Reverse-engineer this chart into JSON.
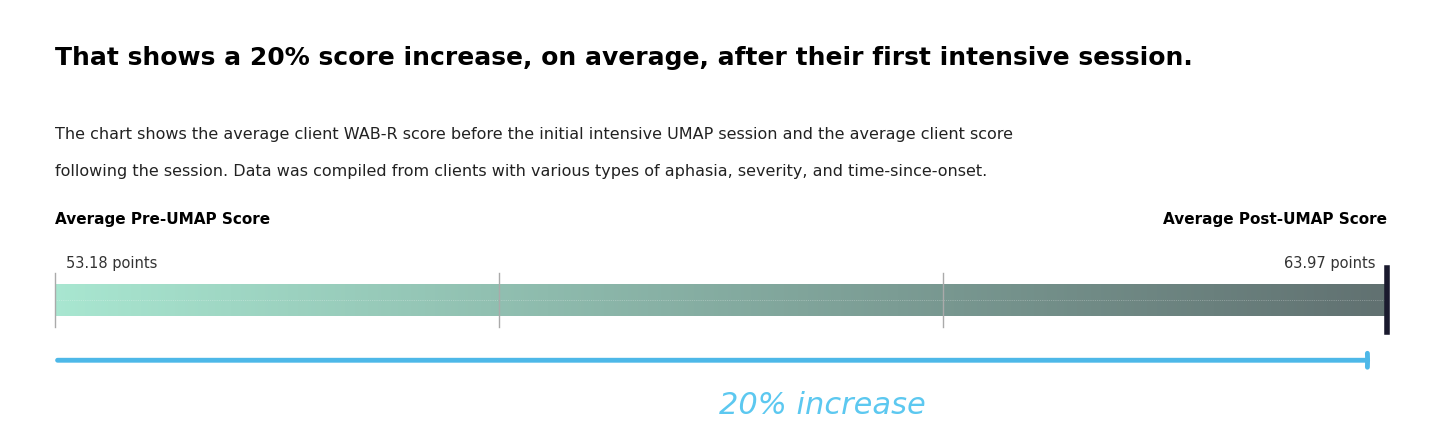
{
  "title": "That shows a 20% score increase, on average, after their first intensive session.",
  "subtitle_line1": "The chart shows the average client WAB-R score before the initial intensive UMAP session and the average client score",
  "subtitle_line2": "following the session. Data was compiled from clients with various types of aphasia, severity, and time-since-onset.",
  "left_label_bold": "Average Pre-UMAP Score",
  "left_label_value": "53.18 points",
  "right_label_bold": "Average Post-UMAP Score",
  "right_label_value": "63.97 points",
  "arrow_label": "20% increase",
  "bar_color_left": "#a8e6d0",
  "bar_color_right": "#607070",
  "tick_color": "#aaaaaa",
  "arrow_color": "#4db8e8",
  "arrow_label_color": "#5cc8f0",
  "background_color": "#ffffff",
  "title_fontsize": 18,
  "subtitle_fontsize": 11.5,
  "label_fontsize": 11,
  "value_fontsize": 10.5,
  "arrow_label_fontsize": 22
}
